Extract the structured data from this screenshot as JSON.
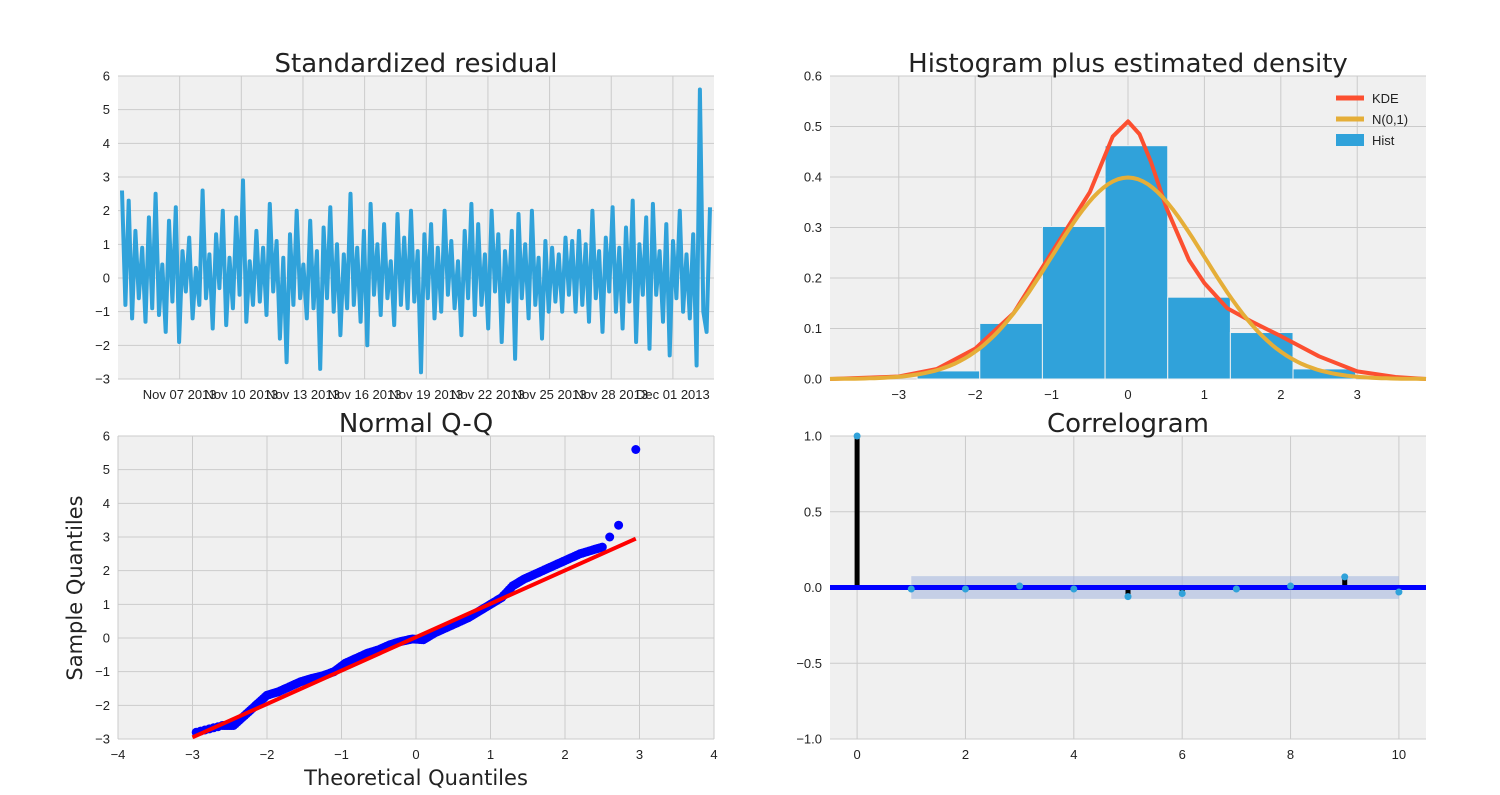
{
  "chart_data": [
    {
      "type": "line",
      "title": "Standardized residual",
      "xlabel": "",
      "ylabel": "",
      "ylim": [
        -3,
        6
      ],
      "yticks": [
        -3,
        -2,
        -1,
        0,
        1,
        2,
        3,
        4,
        5,
        6
      ],
      "ytick_labels": [
        "−3",
        "−2",
        "−1",
        "0",
        "1",
        "2",
        "3",
        "4",
        "5",
        "6"
      ],
      "xlim": [
        "2013-11-04",
        "2013-12-03"
      ],
      "xticks": [
        "Nov 07 2013",
        "Nov 10 2013",
        "Nov 13 2013",
        "Nov 16 2013",
        "Nov 19 2013",
        "Nov 22 2013",
        "Nov 25 2013",
        "Nov 28 2013",
        "Dec 01 2013"
      ],
      "grid": true,
      "series": [
        {
          "color": "#30a2da",
          "frequency": "hourly",
          "start": "2013-11-04",
          "approx_values": [
            2.6,
            -0.8,
            2.3,
            -1.2,
            1.4,
            -0.6,
            0.9,
            -1.3,
            1.8,
            -0.9,
            2.5,
            -1.1,
            0.4,
            -1.6,
            1.7,
            -0.7,
            2.1,
            -1.9,
            0.8,
            -0.4,
            1.2,
            -1.2,
            0.3,
            -0.8,
            2.6,
            -0.6,
            0.7,
            -1.5,
            1.3,
            -0.3,
            2.0,
            -1.4,
            0.6,
            -0.9,
            1.8,
            -0.5,
            2.9,
            -1.3,
            0.5,
            -0.8,
            1.4,
            -0.7,
            0.9,
            -1.1,
            2.2,
            -0.4,
            1.1,
            -1.8,
            0.6,
            -2.5,
            1.3,
            -0.8,
            2.0,
            -0.6,
            0.4,
            -1.2,
            1.7,
            -0.9,
            0.8,
            -2.7,
            1.5,
            -0.6,
            2.1,
            -1.0,
            1.0,
            -1.7,
            0.7,
            -0.9,
            2.5,
            -0.8,
            0.9,
            -1.3,
            1.4,
            -2.0,
            2.2,
            -0.5,
            1.0,
            -1.1,
            1.6,
            -0.6,
            0.5,
            -1.4,
            1.9,
            -0.8,
            1.2,
            -0.9,
            2.0,
            -0.7,
            0.8,
            -2.8,
            1.3,
            -0.6,
            1.6,
            -1.2,
            0.9,
            -1.0,
            2.0,
            -0.5,
            1.1,
            -0.9,
            0.5,
            -1.7,
            1.4,
            -0.6,
            2.2,
            -1.1,
            1.6,
            -0.8,
            0.7,
            -1.5,
            2.0,
            -0.4,
            1.3,
            -1.9,
            0.8,
            -0.7,
            1.4,
            -2.4,
            1.9,
            -0.6,
            1.0,
            -1.2,
            2.0,
            -0.8,
            0.6,
            -1.8,
            1.1,
            -1.0,
            0.9,
            -0.7,
            0.7,
            -1.0,
            1.2,
            -0.5,
            1.1,
            -1.0,
            1.4,
            -0.8,
            1.0,
            -1.3,
            2.0,
            -0.6,
            0.8,
            -1.6,
            1.2,
            -0.4,
            2.1,
            -1.0,
            0.9,
            -1.5,
            1.5,
            -0.7,
            2.3,
            -1.9,
            1.0,
            -0.5,
            1.8,
            -2.1,
            2.2,
            -0.5,
            0.8,
            -1.3,
            1.6,
            -2.3,
            1.1,
            -0.6,
            2.0,
            -1.0,
            0.7,
            -1.2,
            1.3,
            -2.6,
            5.6,
            -1.0,
            -1.6,
            2.1
          ]
        }
      ]
    },
    {
      "type": "bar",
      "title": "Histogram plus estimated density",
      "xlabel": "",
      "ylabel": "",
      "xlim": [
        -3.9,
        3.9
      ],
      "ylim": [
        0.0,
        0.6
      ],
      "xticks": [
        -3,
        -2,
        -1,
        0,
        1,
        2,
        3
      ],
      "xtick_labels": [
        "−3",
        "−2",
        "−1",
        "0",
        "1",
        "2",
        "3"
      ],
      "yticks": [
        0.0,
        0.1,
        0.2,
        0.3,
        0.4,
        0.5,
        0.6
      ],
      "ytick_labels": [
        "0.0",
        "0.1",
        "0.2",
        "0.3",
        "0.4",
        "0.5",
        "0.6"
      ],
      "grid": true,
      "legend_position": "top-right",
      "bins": [
        {
          "from": -2.76,
          "to": -1.94,
          "height": 0.016
        },
        {
          "from": -1.94,
          "to": -1.12,
          "height": 0.11
        },
        {
          "from": -1.12,
          "to": -0.3,
          "height": 0.302
        },
        {
          "from": -0.3,
          "to": 0.52,
          "height": 0.462
        },
        {
          "from": 0.52,
          "to": 1.34,
          "height": 0.162
        },
        {
          "from": 1.34,
          "to": 2.16,
          "height": 0.092
        },
        {
          "from": 2.16,
          "to": 2.98,
          "height": 0.02
        }
      ],
      "series": [
        {
          "name": "KDE",
          "color": "#fc4f30",
          "x": [
            -3.9,
            -3.0,
            -2.5,
            -2.0,
            -1.5,
            -1.0,
            -0.5,
            -0.2,
            0.0,
            0.15,
            0.3,
            0.5,
            0.8,
            1.0,
            1.3,
            1.6,
            2.0,
            2.5,
            3.0,
            3.5,
            3.9
          ],
          "values": [
            0.0,
            0.005,
            0.02,
            0.06,
            0.13,
            0.25,
            0.37,
            0.48,
            0.51,
            0.485,
            0.43,
            0.34,
            0.235,
            0.19,
            0.14,
            0.115,
            0.085,
            0.045,
            0.015,
            0.004,
            0.0
          ]
        },
        {
          "name": "N(0,1)",
          "color": "#e5ae38"
        },
        {
          "name": "Hist",
          "color": "#30a2da"
        }
      ]
    },
    {
      "type": "scatter",
      "title": "Normal Q-Q",
      "xlabel": "Theoretical Quantiles",
      "ylabel": "Sample Quantiles",
      "xlim": [
        -4,
        4
      ],
      "ylim": [
        -3,
        6
      ],
      "xticks": [
        -4,
        -3,
        -2,
        -1,
        0,
        1,
        2,
        3,
        4
      ],
      "xtick_labels": [
        "−4",
        "−3",
        "−2",
        "−1",
        "0",
        "1",
        "2",
        "3",
        "4"
      ],
      "yticks": [
        -3,
        -2,
        -1,
        0,
        1,
        2,
        3,
        4,
        5,
        6
      ],
      "ytick_labels": [
        "−3",
        "−2",
        "−1",
        "0",
        "1",
        "2",
        "3",
        "4",
        "5",
        "6"
      ],
      "grid": true,
      "series": [
        {
          "color": "#0000ff",
          "x": [
            -2.95,
            -2.6,
            -2.45,
            -2.3,
            -2.15,
            -2.0,
            -1.85,
            -1.7,
            -1.55,
            -1.4,
            -1.25,
            -1.1,
            -0.95,
            -0.8,
            -0.65,
            -0.5,
            -0.35,
            -0.2,
            -0.05,
            0.1,
            0.25,
            0.4,
            0.55,
            0.7,
            0.85,
            1.0,
            1.15,
            1.3,
            1.45,
            1.6,
            1.75,
            1.9,
            2.05,
            2.2,
            2.35,
            2.5,
            2.6,
            2.72,
            2.95
          ],
          "values": [
            -2.8,
            -2.6,
            -2.6,
            -2.3,
            -2.0,
            -1.7,
            -1.6,
            -1.45,
            -1.3,
            -1.2,
            -1.12,
            -1.0,
            -0.75,
            -0.6,
            -0.45,
            -0.35,
            -0.2,
            -0.1,
            -0.03,
            -0.05,
            0.15,
            0.3,
            0.45,
            0.6,
            0.8,
            1.0,
            1.2,
            1.55,
            1.75,
            1.9,
            2.05,
            2.2,
            2.35,
            2.5,
            2.6,
            2.7,
            3.0,
            3.35,
            5.6
          ]
        },
        {
          "color": "#ff0000",
          "x": [
            -3.0,
            2.95
          ],
          "values": [
            -2.95,
            2.95
          ]
        }
      ]
    },
    {
      "type": "bar",
      "title": "Correlogram",
      "xlabel": "",
      "ylabel": "",
      "xlim": [
        -0.5,
        10.5
      ],
      "ylim": [
        -1.0,
        1.0
      ],
      "xticks": [
        0,
        2,
        4,
        6,
        8,
        10
      ],
      "xtick_labels": [
        "0",
        "2",
        "4",
        "6",
        "8",
        "10"
      ],
      "yticks": [
        -1.0,
        -0.5,
        0.0,
        0.5,
        1.0
      ],
      "ytick_labels": [
        "−1.0",
        "−0.5",
        "0.0",
        "0.5",
        "1.0"
      ],
      "grid": true,
      "confidence_band": [
        -0.075,
        0.075
      ],
      "series": [
        {
          "color": "#000000",
          "marker_color": "#30a2da",
          "categories": [
            0,
            1,
            2,
            3,
            4,
            5,
            6,
            7,
            8,
            9,
            10
          ],
          "values": [
            1.0,
            -0.01,
            -0.01,
            0.01,
            -0.01,
            -0.06,
            -0.04,
            -0.01,
            0.01,
            0.07,
            -0.03
          ]
        }
      ]
    }
  ]
}
